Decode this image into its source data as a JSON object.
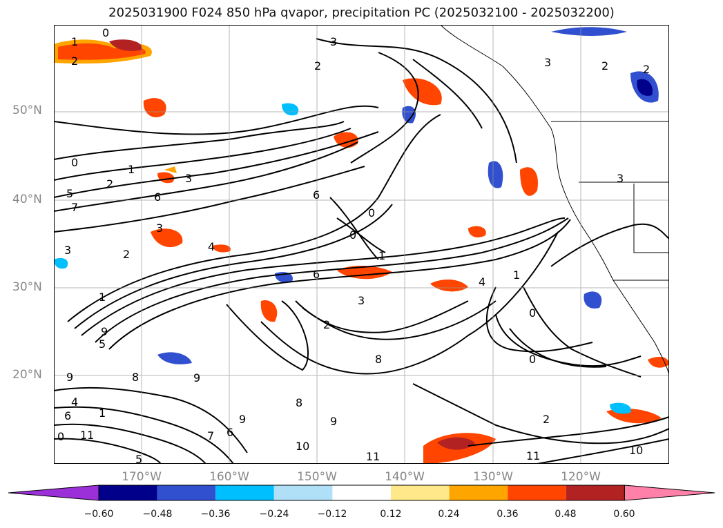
{
  "title": "2025031900 F024 850 hPa qvapor, precipitation PC (2025032100 - 2025032200)",
  "lat_labels": [
    "50°N",
    "40°N",
    "30°N",
    "20°N"
  ],
  "lon_labels": [
    "170°W",
    "160°W",
    "150°W",
    "140°W",
    "130°W",
    "120°W"
  ],
  "colorbar": {
    "ticks": [
      "−0.60",
      "−0.48",
      "−0.36",
      "−0.24",
      "−0.12",
      "0.12",
      "0.24",
      "0.36",
      "0.48",
      "0.60"
    ],
    "colors": [
      "#9b30d9",
      "#00008b",
      "#3050d0",
      "#00bfff",
      "#b0e0f8",
      "#ffffff",
      "#ffe88a",
      "#ffa500",
      "#ff4500",
      "#b22222",
      "#ff80a8"
    ]
  },
  "contour_labels": [
    "0",
    "1",
    "2",
    "3",
    "4",
    "5",
    "6",
    "7",
    "8",
    "9",
    "10",
    "11"
  ],
  "colors": {
    "axis_text": "#888888",
    "grid": "#999999",
    "contour": "#000000"
  }
}
